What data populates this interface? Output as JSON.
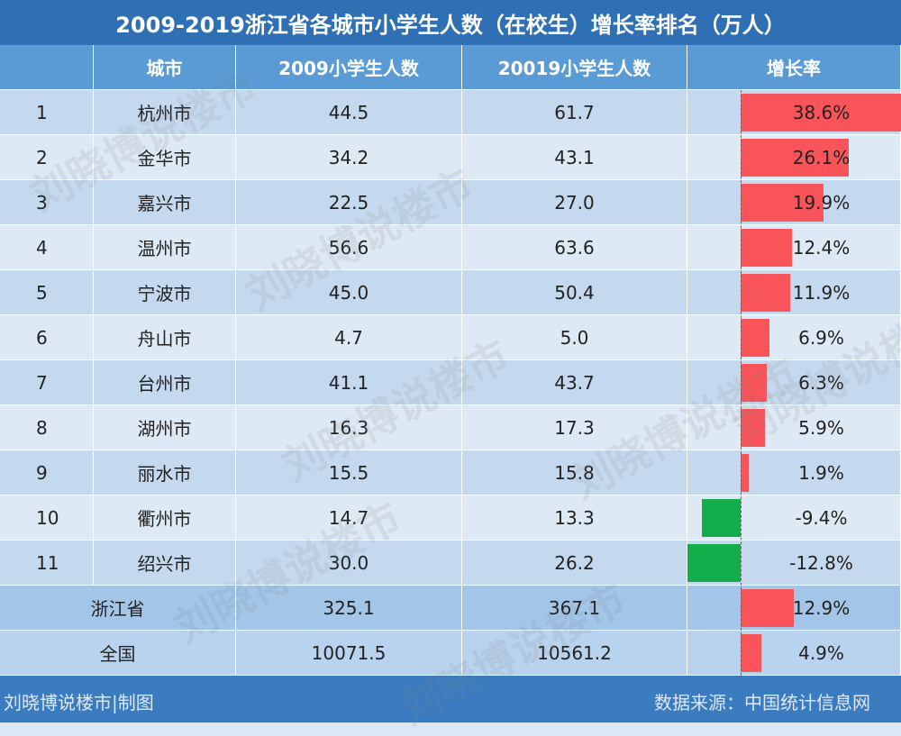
{
  "header": {
    "title": "2009-2019浙江省各城市小学生人数（在校生）增长率排名（万人）"
  },
  "table": {
    "columns": [
      "城市",
      "2009小学生人数",
      "20019小学生人数",
      "增长率"
    ],
    "rows": [
      {
        "rank": "1",
        "city": "杭州市",
        "y2009": "44.5",
        "y2019": "61.7",
        "growth": {
          "value": 38.6,
          "label": "38.6%"
        }
      },
      {
        "rank": "2",
        "city": "金华市",
        "y2009": "34.2",
        "y2019": "43.1",
        "growth": {
          "value": 26.1,
          "label": "26.1%"
        }
      },
      {
        "rank": "3",
        "city": "嘉兴市",
        "y2009": "22.5",
        "y2019": "27.0",
        "growth": {
          "value": 19.9,
          "label": "19.9%"
        }
      },
      {
        "rank": "4",
        "city": "温州市",
        "y2009": "56.6",
        "y2019": "63.6",
        "growth": {
          "value": 12.4,
          "label": "12.4%"
        }
      },
      {
        "rank": "5",
        "city": "宁波市",
        "y2009": "45.0",
        "y2019": "50.4",
        "growth": {
          "value": 11.9,
          "label": "11.9%"
        }
      },
      {
        "rank": "6",
        "city": "舟山市",
        "y2009": "4.7",
        "y2019": "5.0",
        "growth": {
          "value": 6.9,
          "label": "6.9%"
        }
      },
      {
        "rank": "7",
        "city": "台州市",
        "y2009": "41.1",
        "y2019": "43.7",
        "growth": {
          "value": 6.3,
          "label": "6.3%"
        }
      },
      {
        "rank": "8",
        "city": "湖州市",
        "y2009": "16.3",
        "y2019": "17.3",
        "growth": {
          "value": 5.9,
          "label": "5.9%"
        }
      },
      {
        "rank": "9",
        "city": "丽水市",
        "y2009": "15.5",
        "y2019": "15.8",
        "growth": {
          "value": 1.9,
          "label": "1.9%"
        }
      },
      {
        "rank": "10",
        "city": "衢州市",
        "y2009": "14.7",
        "y2019": "13.3",
        "growth": {
          "value": -9.4,
          "label": "-9.4%"
        }
      },
      {
        "rank": "11",
        "city": "绍兴市",
        "y2009": "30.0",
        "y2019": "26.2",
        "growth": {
          "value": -12.8,
          "label": "-12.8%"
        }
      }
    ],
    "summary": [
      {
        "city": "浙江省",
        "y2009": "325.1",
        "y2019": "367.1",
        "growth": {
          "value": 12.9,
          "label": "12.9%"
        }
      },
      {
        "city": "全国",
        "y2009": "10071.5",
        "y2019": "10561.2",
        "growth": {
          "value": 4.9,
          "label": "4.9%"
        }
      }
    ]
  },
  "footer": {
    "left": "刘晓博说楼市|制图",
    "right": "数据来源：中国统计信息网"
  },
  "watermark": "刘晓博说楼市"
}
